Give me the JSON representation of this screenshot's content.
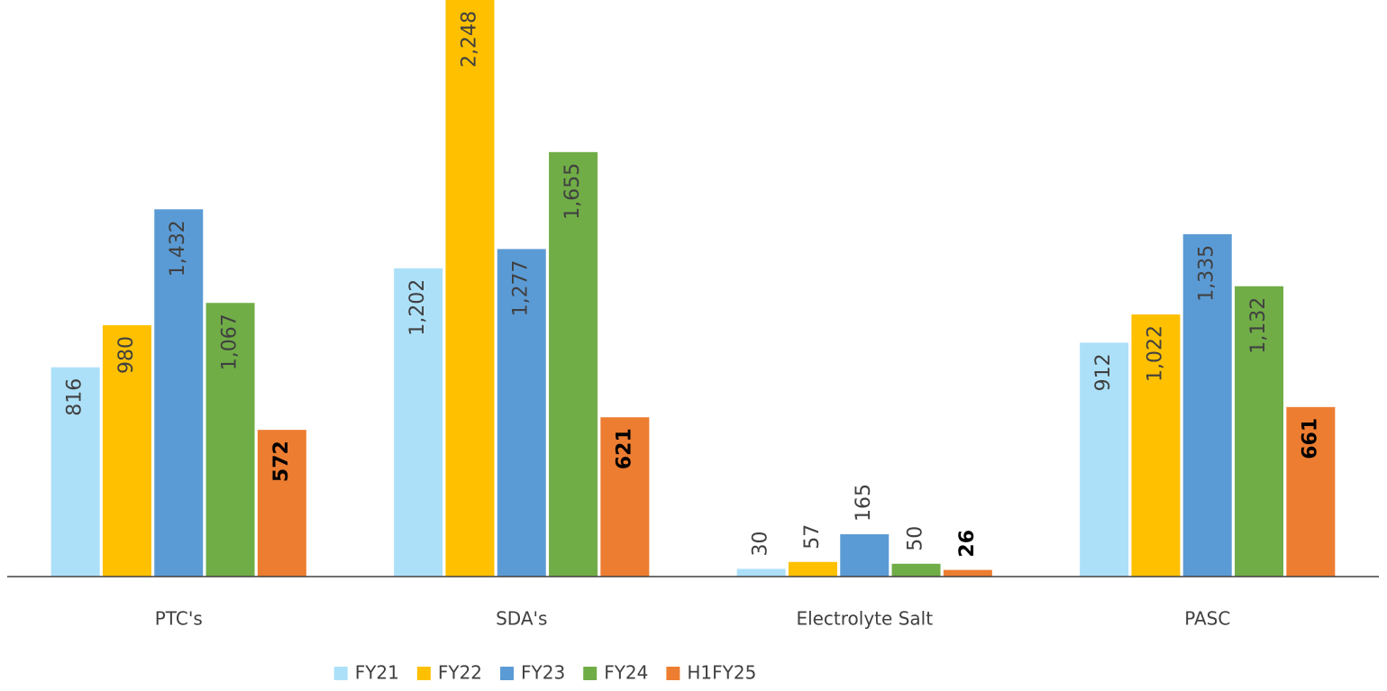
{
  "chart_data": {
    "type": "bar",
    "categories": [
      "PTC's",
      "SDA's",
      "Electrolyte Salt",
      "PASC"
    ],
    "series": [
      {
        "name": "FY21",
        "color": "#ace0f9",
        "values": [
          816,
          1202,
          30,
          912
        ],
        "value_labels": [
          "816",
          "1,202",
          "30",
          "912"
        ]
      },
      {
        "name": "FY22",
        "color": "#ffc000",
        "values": [
          980,
          2248,
          57,
          1022
        ],
        "value_labels": [
          "980",
          "2,248",
          "57",
          "1,022"
        ]
      },
      {
        "name": "FY23",
        "color": "#5b9bd5",
        "values": [
          1432,
          1277,
          165,
          1335
        ],
        "value_labels": [
          "1,432",
          "1,277",
          "165",
          "1,335"
        ]
      },
      {
        "name": "FY24",
        "color": "#70ad47",
        "values": [
          1067,
          1655,
          50,
          1132
        ],
        "value_labels": [
          "1,067",
          "1,655",
          "50",
          "1,132"
        ]
      },
      {
        "name": "H1FY25",
        "color": "#ed7d31",
        "values": [
          572,
          621,
          26,
          661
        ],
        "value_labels": [
          "572",
          "621",
          "26",
          "661"
        ],
        "bold_labels": true
      }
    ],
    "legend": "bottom"
  }
}
